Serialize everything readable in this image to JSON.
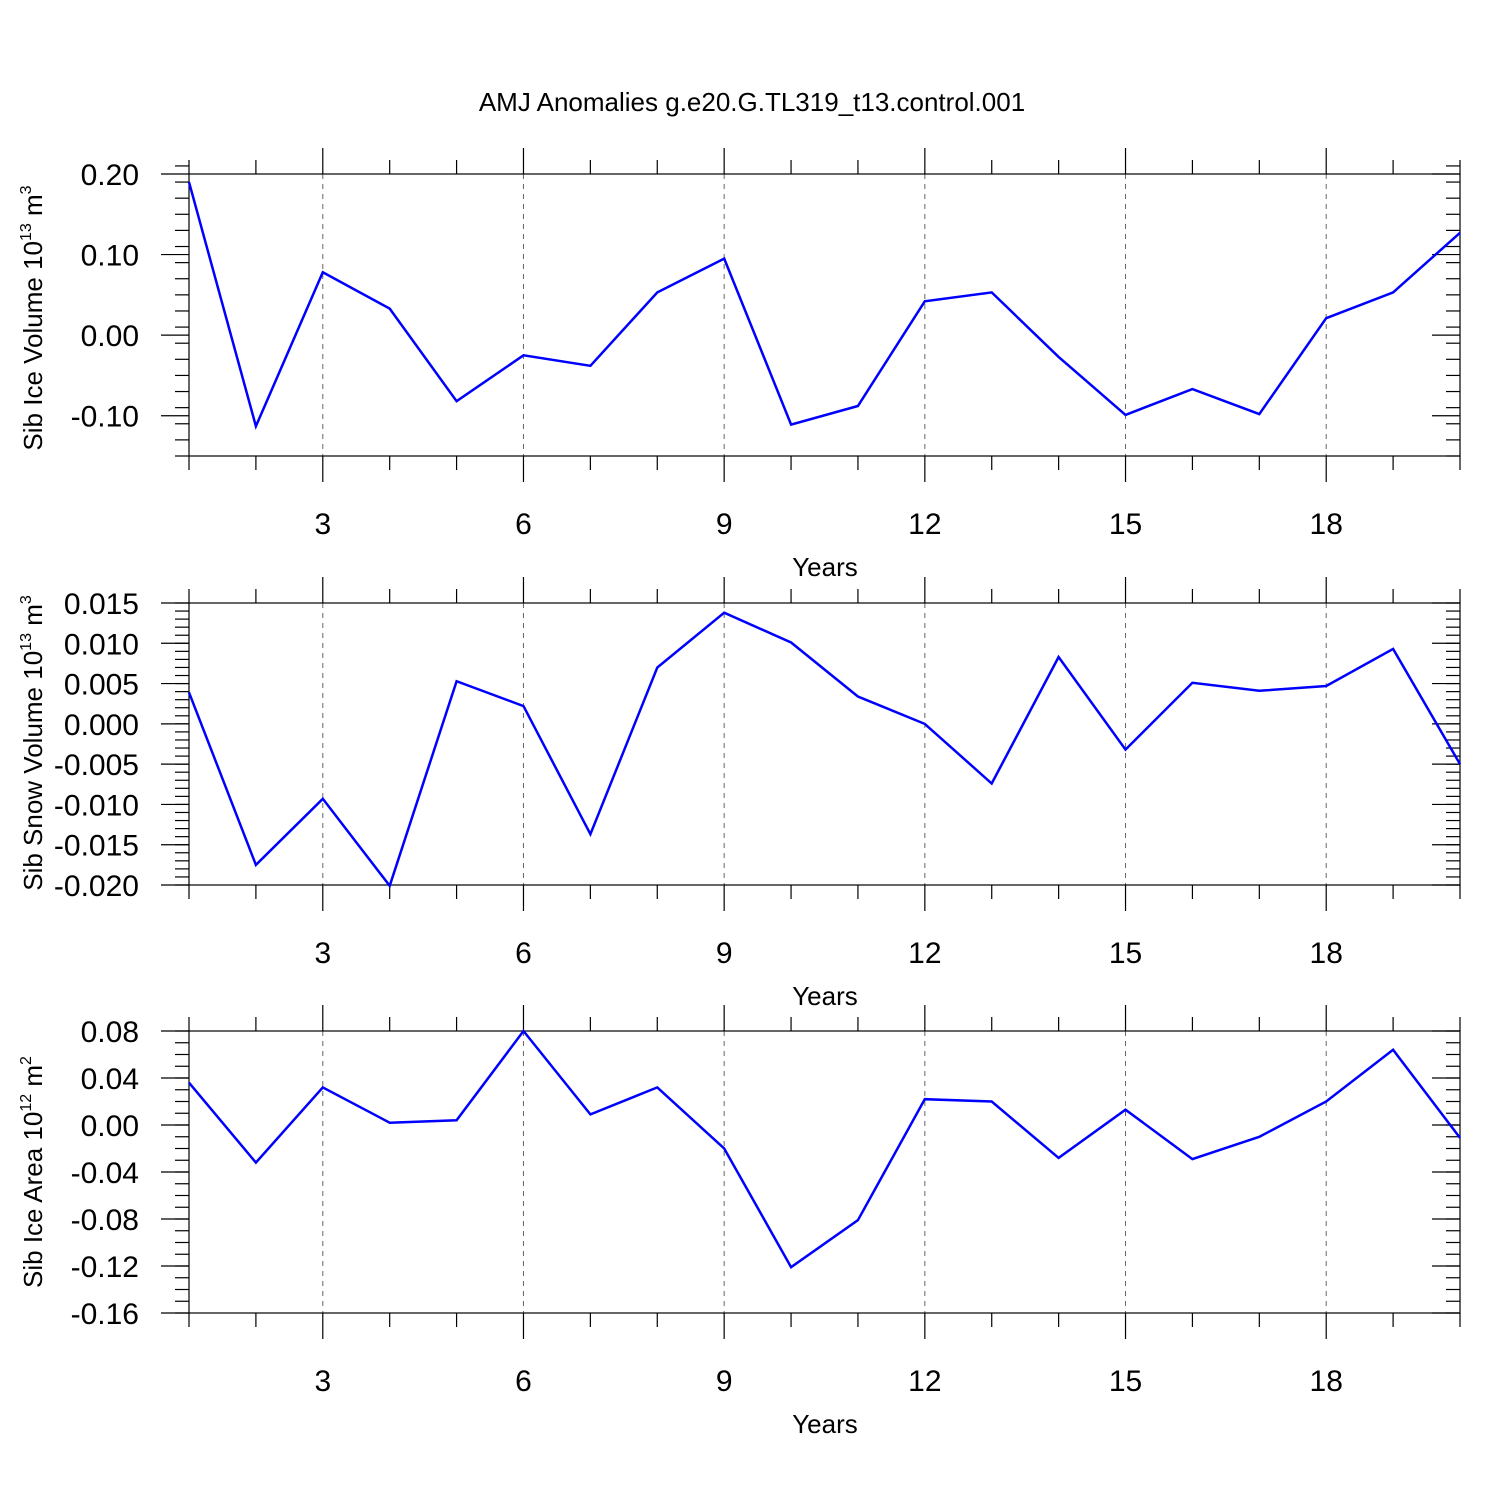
{
  "title": "AMJ Anomalies g.e20.G.TL319_t13.control.001",
  "colors": {
    "series": "#0000ff",
    "axis": "#000000",
    "grid": "#666666"
  },
  "chart_data": [
    {
      "type": "line",
      "ylabel_main": "Sib Ice Volume 10",
      "ylabel_exp": "13",
      "ylabel_unit": " m",
      "ylabel_unit_exp": "3",
      "xlabel": "Years",
      "xlim": [
        1,
        20
      ],
      "ylim": [
        -0.15,
        0.2
      ],
      "yticks": [
        0.2,
        0.1,
        0.0,
        -0.1
      ],
      "ytick_labels": [
        "0.20",
        "0.10",
        "0.00",
        "-0.10"
      ],
      "yminor_step": 0.02,
      "xticks": [
        3,
        6,
        9,
        12,
        15,
        18
      ],
      "xtick_labels": [
        "3",
        "6",
        "9",
        "12",
        "15",
        "18"
      ],
      "x": [
        1,
        2,
        3,
        4,
        5,
        6,
        7,
        8,
        9,
        10,
        11,
        12,
        13,
        14,
        15,
        16,
        17,
        18,
        19,
        20
      ],
      "values": [
        0.19,
        -0.113,
        0.078,
        0.033,
        -0.082,
        -0.025,
        -0.038,
        0.053,
        0.095,
        -0.111,
        -0.088,
        0.042,
        0.053,
        -0.027,
        -0.099,
        -0.067,
        -0.098,
        0.021,
        0.053,
        0.127
      ]
    },
    {
      "type": "line",
      "ylabel_main": "Sib Snow Volume 10",
      "ylabel_exp": "13",
      "ylabel_unit": " m",
      "ylabel_unit_exp": "3",
      "xlabel": "Years",
      "xlim": [
        1,
        20
      ],
      "ylim": [
        -0.02,
        0.015
      ],
      "yticks": [
        0.015,
        0.01,
        0.005,
        0.0,
        -0.005,
        -0.01,
        -0.015,
        -0.02
      ],
      "ytick_labels": [
        "0.015",
        "0.010",
        "0.005",
        "0.000",
        "-0.005",
        "-0.010",
        "-0.015",
        "-0.020"
      ],
      "yminor_step": 0.001,
      "xticks": [
        3,
        6,
        9,
        12,
        15,
        18
      ],
      "xtick_labels": [
        "3",
        "6",
        "9",
        "12",
        "15",
        "18"
      ],
      "x": [
        1,
        2,
        3,
        4,
        5,
        6,
        7,
        8,
        9,
        10,
        11,
        12,
        13,
        14,
        15,
        16,
        17,
        18,
        19,
        20
      ],
      "values": [
        0.0039,
        -0.0175,
        -0.0093,
        -0.0201,
        0.0053,
        0.0022,
        -0.0137,
        0.007,
        0.0138,
        0.0101,
        0.0034,
        0.0,
        -0.0074,
        0.0083,
        -0.0032,
        0.0051,
        0.0041,
        0.0047,
        0.0093,
        -0.005
      ]
    },
    {
      "type": "line",
      "ylabel_main": "Sib Ice Area 10",
      "ylabel_exp": "12",
      "ylabel_unit": " m",
      "ylabel_unit_exp": "2",
      "xlabel": "Years",
      "xlim": [
        1,
        20
      ],
      "ylim": [
        -0.16,
        0.08
      ],
      "yticks": [
        0.08,
        0.04,
        0.0,
        -0.04,
        -0.08,
        -0.12,
        -0.16
      ],
      "ytick_labels": [
        "0.08",
        "0.04",
        "0.00",
        "-0.04",
        "-0.08",
        "-0.12",
        "-0.16"
      ],
      "yminor_step": 0.01,
      "xticks": [
        3,
        6,
        9,
        12,
        15,
        18
      ],
      "xtick_labels": [
        "3",
        "6",
        "9",
        "12",
        "15",
        "18"
      ],
      "x": [
        1,
        2,
        3,
        4,
        5,
        6,
        7,
        8,
        9,
        10,
        11,
        12,
        13,
        14,
        15,
        16,
        17,
        18,
        19,
        20
      ],
      "values": [
        0.036,
        -0.032,
        0.032,
        0.002,
        0.004,
        0.08,
        0.009,
        0.032,
        -0.02,
        -0.121,
        -0.081,
        0.022,
        0.02,
        -0.028,
        0.013,
        -0.029,
        -0.01,
        0.02,
        0.064,
        -0.011
      ]
    }
  ]
}
